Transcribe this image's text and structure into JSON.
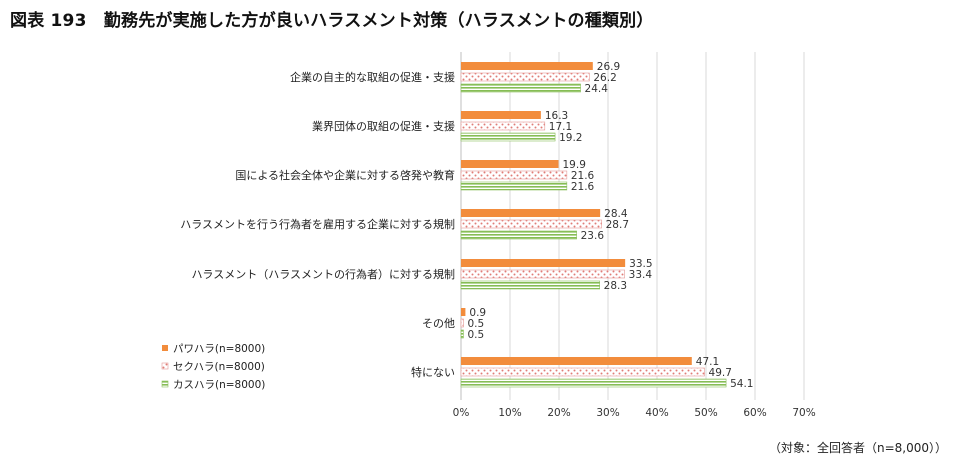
{
  "title": "図表 193　勤務先が実施した方が良いハラスメント対策（ハラスメントの種類別）",
  "footnote": "（対象：全回答者（n=8,000））",
  "colors": {
    "power": "#f28c3c",
    "sexual": "#e49a96",
    "customer": "#8cbf5e",
    "grid": "#d9d9d9",
    "axis": "#bfbfbf"
  },
  "chart_data": {
    "type": "bar",
    "orientation": "horizontal",
    "categories": [
      "企業の自主的な取組の促進・支援",
      "業界団体の取組の促進・支援",
      "国による社会全体や企業に対する啓発や教育",
      "ハラスメントを行う行為者を雇用する企業に対する規制",
      "ハラスメント（ハラスメントの行為者）に対する規制",
      "その他",
      "特にない"
    ],
    "series": [
      {
        "name": "パワハラ(n=8000)",
        "values": [
          26.9,
          16.3,
          19.9,
          28.4,
          33.5,
          0.9,
          47.1
        ],
        "labels": [
          "26.9",
          "16.3",
          "19.9",
          "28.4",
          "33.5",
          "0.9",
          "47.1"
        ]
      },
      {
        "name": "セクハラ(n=8000)",
        "values": [
          26.2,
          17.1,
          21.6,
          28.7,
          33.4,
          0.5,
          49.7
        ],
        "labels": [
          "26.2",
          "17.1",
          "21.6",
          "28.7",
          "33.4",
          "0.5",
          "49.7"
        ]
      },
      {
        "name": "カスハラ(n=8000)",
        "values": [
          24.4,
          19.2,
          21.6,
          23.6,
          28.3,
          0.5,
          54.1
        ],
        "labels": [
          "24.4",
          "19.2",
          "21.6",
          "23.6",
          "28.3",
          "0.5",
          "54.1"
        ]
      }
    ],
    "xlim": [
      0,
      70
    ],
    "xticks": [
      "0%",
      "10%",
      "20%",
      "30%",
      "40%",
      "50%",
      "60%",
      "70%"
    ],
    "grid": true,
    "legend_position": "left-bottom"
  }
}
